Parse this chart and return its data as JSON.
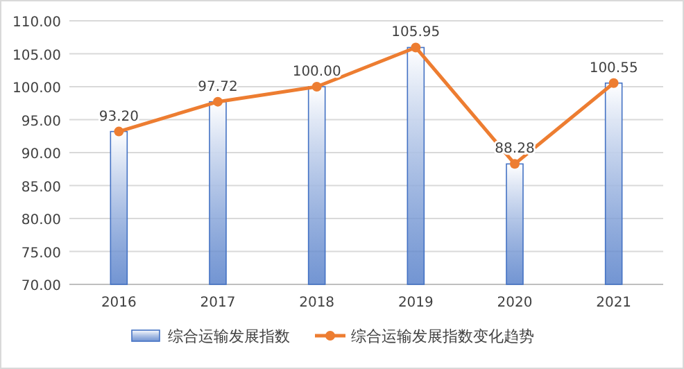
{
  "chart_data": {
    "type": "bar",
    "categories": [
      "2016",
      "2017",
      "2018",
      "2019",
      "2020",
      "2021"
    ],
    "series": [
      {
        "name": "综合运输发展指数",
        "color": "#4472c4",
        "values": [
          93.2,
          97.72,
          100.0,
          105.95,
          88.28,
          100.55
        ]
      },
      {
        "name": "综合运输发展指数变化趋势",
        "type": "line",
        "color": "#ed7d31",
        "values": [
          93.2,
          97.72,
          100.0,
          105.95,
          88.28,
          100.55
        ]
      }
    ],
    "ylim": [
      70,
      110
    ],
    "yticks": [
      {
        "value": 70,
        "label": "70.00"
      },
      {
        "value": 75,
        "label": "75.00"
      },
      {
        "value": 80,
        "label": "80.00"
      },
      {
        "value": 85,
        "label": "85.00"
      },
      {
        "value": 90,
        "label": "90.00"
      },
      {
        "value": 95,
        "label": "95.00"
      },
      {
        "value": 100,
        "label": "100.00"
      },
      {
        "value": 105,
        "label": "105.00"
      },
      {
        "value": 110,
        "label": "110.00"
      }
    ],
    "grid": "y",
    "legend": "bottom",
    "marker": "circle",
    "line_style": "solid",
    "value_labels": [
      "93.20",
      "97.72",
      "100.00",
      "105.95",
      "88.28",
      "100.55"
    ]
  }
}
